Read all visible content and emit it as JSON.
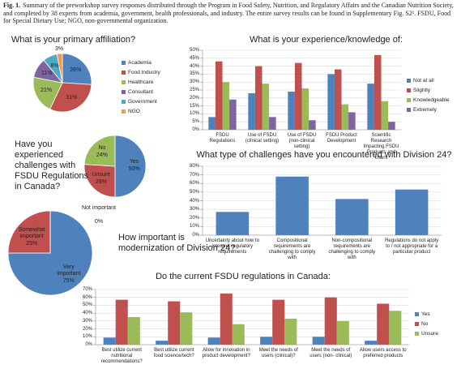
{
  "caption": {
    "label": "Fig. 1.",
    "text": "Summary of the preworkshop survey responses distributed through the Program in Food Safety, Nutrition, and Regulatory Affairs and the Canadian Nutrition Society, and completed by 38 experts from academia, government, health professionals, and industry. The entire survey results can be found in Supplementary Fig. S2¹. FSDU, Food for Special Dietary Use; NGO, non-governmental organization."
  },
  "chart_data": [
    {
      "type": "pie",
      "title": "What is your primary affiliation?",
      "legend": "right",
      "categories": [
        "Academia",
        "Food Industry",
        "Healthcare",
        "Consultant",
        "Government",
        "NGO"
      ],
      "values": [
        26,
        31,
        21,
        11,
        8,
        3
      ],
      "value_labels": [
        "26%",
        "31%",
        "21%",
        "11%",
        "8%",
        "3%"
      ],
      "colors": [
        "#4f81bd",
        "#c0504d",
        "#9bbb59",
        "#8064a2",
        "#4bacc6",
        "#f79646"
      ]
    },
    {
      "type": "bar",
      "title": "What is your experience/knowledge of:",
      "grid": true,
      "legend": "right",
      "categories": [
        "FSDU Regulations",
        "Use of FSDU (clinical setting)",
        "Use of FSDU (non-clinical setting)",
        "FSDU Product Development",
        "Scientific Research Impacting FSDU Products and Users"
      ],
      "series": [
        {
          "name": "Not at all",
          "color": "#4f81bd",
          "values": [
            8,
            23,
            24,
            35,
            29
          ]
        },
        {
          "name": "Slightly",
          "color": "#c0504d",
          "values": [
            43,
            40,
            42,
            38,
            47
          ]
        },
        {
          "name": "Knowledgeable",
          "color": "#9bbb59",
          "values": [
            30,
            29,
            26,
            16,
            18
          ]
        },
        {
          "name": "Extremely",
          "color": "#8064a2",
          "values": [
            19,
            8,
            6,
            11,
            5
          ]
        }
      ],
      "ylim": [
        0,
        50
      ],
      "yticks": [
        {
          "value": 0,
          "label": "0%"
        },
        {
          "value": 5,
          "label": "5%"
        },
        {
          "value": 10,
          "label": "10%"
        },
        {
          "value": 15,
          "label": "15%"
        },
        {
          "value": 20,
          "label": "20%"
        },
        {
          "value": 25,
          "label": "25%"
        },
        {
          "value": 30,
          "label": "30%"
        },
        {
          "value": 35,
          "label": "35%"
        },
        {
          "value": 40,
          "label": "40%"
        },
        {
          "value": 45,
          "label": "45%"
        },
        {
          "value": 50,
          "label": "50%"
        }
      ]
    },
    {
      "type": "pie",
      "title": "Have you experienced challenges with FSDU Regulations in Canada?",
      "categories": [
        "Yes",
        "Unsure",
        "No"
      ],
      "values": [
        50,
        26,
        24
      ],
      "value_labels": [
        "50%",
        "26%",
        "24%"
      ],
      "colors": [
        "#4f81bd",
        "#c0504d",
        "#9bbb59"
      ]
    },
    {
      "type": "bar",
      "title": "What type of challenges have you encountered with Division 24?",
      "grid": true,
      "categories": [
        "Uncertainty about how to interpret regulatory requirements",
        "Compositional requirements are challenging to comply with",
        "Non-compositional requirements are challenging to comply with",
        "Regulations do not apply to / not appropriate for a particular product"
      ],
      "values": [
        27,
        68,
        42,
        53
      ],
      "color": "#4f81bd",
      "ylim": [
        0,
        80
      ],
      "yticks": [
        {
          "value": 0,
          "label": "0%"
        },
        {
          "value": 10,
          "label": "10%"
        },
        {
          "value": 20,
          "label": "20%"
        },
        {
          "value": 30,
          "label": "30%"
        },
        {
          "value": 40,
          "label": "40%"
        },
        {
          "value": 50,
          "label": "50%"
        },
        {
          "value": 60,
          "label": "60%"
        },
        {
          "value": 70,
          "label": "70%"
        },
        {
          "value": 80,
          "label": "80%"
        }
      ]
    },
    {
      "type": "pie",
      "title": "How important is modernization of Division 24?",
      "categories": [
        "Very important",
        "Somewhat important",
        "Not important"
      ],
      "values": [
        75,
        25,
        0
      ],
      "value_labels": [
        "75%",
        "25%",
        "0%"
      ],
      "colors": [
        "#4f81bd",
        "#c0504d",
        "#9bbb59"
      ]
    },
    {
      "type": "bar",
      "title": "Do the current FSDU regulations in Canada:",
      "grid": true,
      "legend": "right",
      "categories": [
        "Best utilize current nutritional recommendations?",
        "Best utilize current food science/tech?",
        "Allow for innovation in product development?",
        "Meet the needs of users (clinical)?",
        "Meet the needs of users (non- clinical)",
        "Allow users access to preferred products"
      ],
      "series": [
        {
          "name": "Yes",
          "color": "#4f81bd",
          "values": [
            9,
            5,
            9,
            10,
            10,
            5
          ]
        },
        {
          "name": "No",
          "color": "#c0504d",
          "values": [
            57,
            55,
            65,
            57,
            60,
            52
          ]
        },
        {
          "name": "Unsure",
          "color": "#9bbb59",
          "values": [
            35,
            41,
            26,
            33,
            30,
            43
          ]
        }
      ],
      "ylim": [
        0,
        70
      ],
      "yticks": [
        {
          "value": 0,
          "label": "0%"
        },
        {
          "value": 10,
          "label": "10%"
        },
        {
          "value": 20,
          "label": "20%"
        },
        {
          "value": 30,
          "label": "30%"
        },
        {
          "value": 40,
          "label": "40%"
        },
        {
          "value": 50,
          "label": "50%"
        },
        {
          "value": 60,
          "label": "60%"
        },
        {
          "value": 70,
          "label": "70%"
        }
      ]
    }
  ]
}
